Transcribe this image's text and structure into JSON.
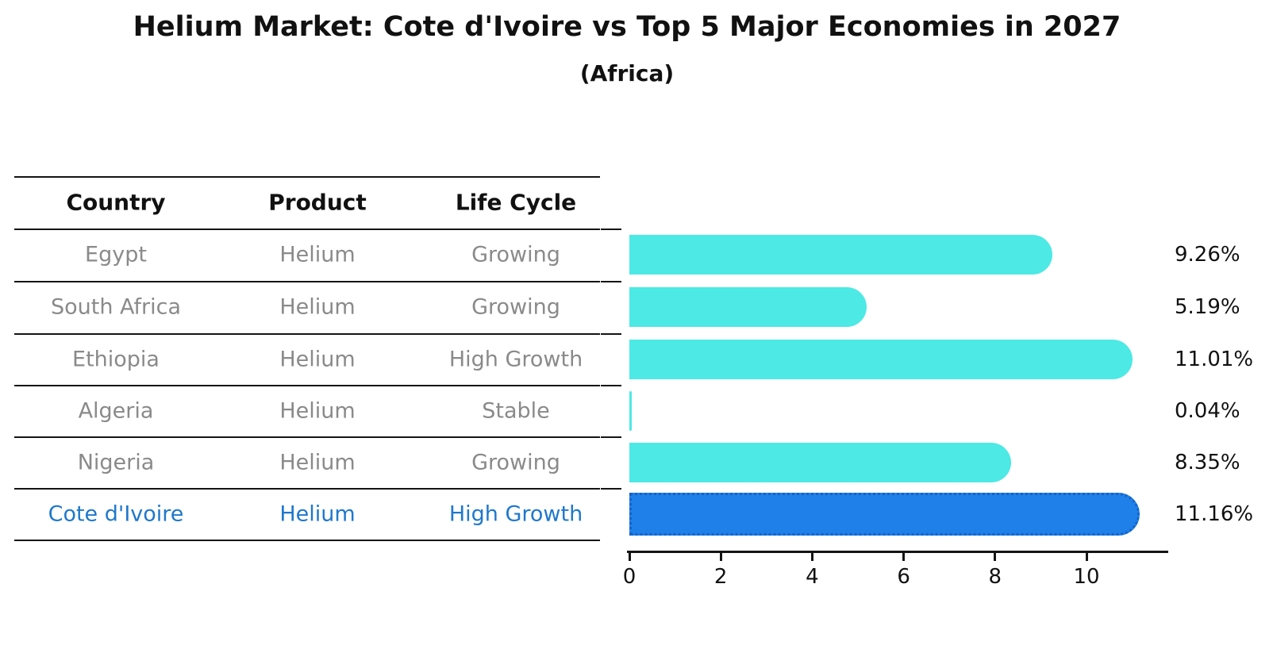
{
  "title": "Helium Market: Cote d'Ivoire vs Top 5 Major Economies in 2027",
  "subtitle": "(Africa)",
  "table": {
    "headers": [
      "Country",
      "Product",
      "Life Cycle"
    ],
    "rows": [
      {
        "country": "Egypt",
        "product": "Helium",
        "life_cycle": "Growing",
        "highlight": false
      },
      {
        "country": "South Africa",
        "product": "Helium",
        "life_cycle": "Growing",
        "highlight": false
      },
      {
        "country": "Ethiopia",
        "product": "Helium",
        "life_cycle": "High Growth",
        "highlight": false
      },
      {
        "country": "Algeria",
        "product": "Helium",
        "life_cycle": "Stable",
        "highlight": false
      },
      {
        "country": "Nigeria",
        "product": "Helium",
        "life_cycle": "Growing",
        "highlight": false
      },
      {
        "country": "Cote d'Ivoire",
        "product": "Helium",
        "life_cycle": "High Growth",
        "highlight": true
      }
    ]
  },
  "chart_data": {
    "type": "bar",
    "orientation": "horizontal",
    "title": "Helium Market: Cote d'Ivoire vs Top 5 Major Economies in 2027",
    "subtitle": "(Africa)",
    "categories": [
      "Egypt",
      "South Africa",
      "Ethiopia",
      "Algeria",
      "Nigeria",
      "Cote d'Ivoire"
    ],
    "values": [
      9.26,
      5.19,
      11.01,
      0.04,
      8.35,
      11.16
    ],
    "value_labels": [
      "9.26%",
      "5.19%",
      "11.01%",
      "0.04%",
      "8.35%",
      "11.16%"
    ],
    "xlabel": "",
    "ylabel": "",
    "x_ticks": [
      0,
      2,
      4,
      6,
      8,
      10
    ],
    "xlim": [
      0,
      11.75
    ],
    "grid": false,
    "legend": "none",
    "colors": {
      "bar_default": "#4cе9e5",
      "bar_default_hex": "#4ce9e5",
      "bar_highlight": "#1e80e8",
      "bar_highlight_border": "#1563c8",
      "highlight_text": "#1f78cc",
      "table_text": "#8a8a8a",
      "axis_text": "#111111"
    }
  }
}
